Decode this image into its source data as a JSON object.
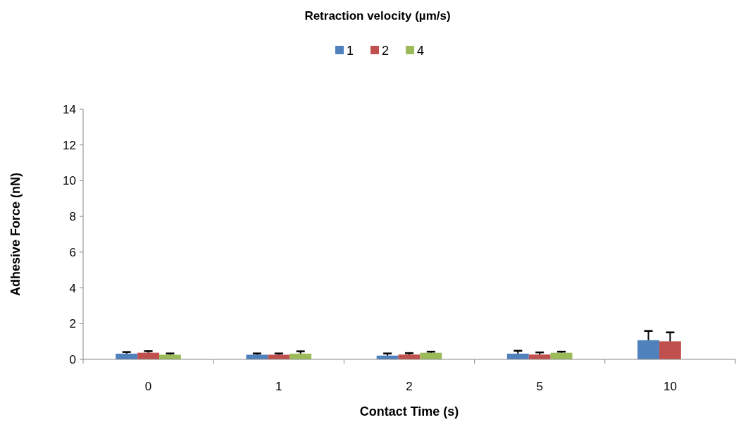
{
  "chart_data": {
    "type": "bar",
    "legend_title": "Retraction velocity (µm/s)",
    "xlabel": "Contact Time (s)",
    "ylabel": "Adhesive Force (nN)",
    "categories": [
      "0",
      "1",
      "2",
      "5",
      "10"
    ],
    "series": [
      {
        "name": "1",
        "color": "#4f81bd",
        "values": [
          0.32,
          0.26,
          0.21,
          0.32,
          1.07
        ],
        "errors": [
          [
            0.32,
            0.41
          ],
          [
            0.26,
            0.33
          ],
          [
            0.21,
            0.33
          ],
          [
            0.32,
            0.48
          ],
          [
            1.07,
            1.59
          ]
        ]
      },
      {
        "name": "2",
        "color": "#c0504d",
        "values": [
          0.37,
          0.26,
          0.27,
          0.27,
          1.01
        ],
        "errors": [
          [
            0.37,
            0.46
          ],
          [
            0.26,
            0.33
          ],
          [
            0.27,
            0.35
          ],
          [
            0.27,
            0.39
          ],
          [
            1.01,
            1.51
          ]
        ]
      },
      {
        "name": "4",
        "color": "#9bbb59",
        "values": [
          0.26,
          0.32,
          0.37,
          0.37,
          null
        ],
        "errors": [
          [
            0.26,
            0.33
          ],
          [
            0.32,
            0.45
          ],
          [
            0.37,
            0.43
          ],
          [
            0.37,
            0.43
          ],
          null
        ]
      }
    ],
    "ylim": [
      0,
      14
    ],
    "yticks": [
      0,
      2,
      4,
      6,
      8,
      10,
      12,
      14
    ],
    "grid": false,
    "legend": "top"
  }
}
